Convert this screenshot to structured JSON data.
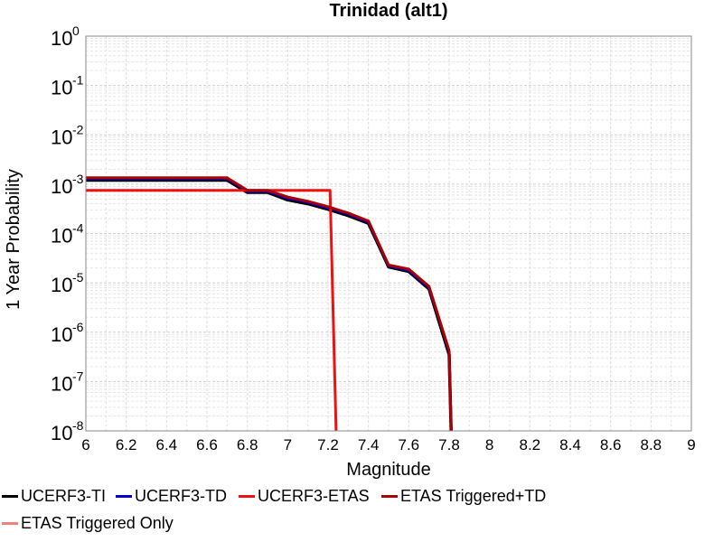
{
  "chart_data": {
    "type": "line",
    "title": "Trinidad (alt1)",
    "xlabel": "Magnitude",
    "ylabel": "1 Year Probability",
    "x_scale": "linear",
    "y_scale": "log",
    "xlim": [
      6,
      9
    ],
    "ylim": [
      1e-08,
      1
    ],
    "x_ticks": [
      "6",
      "6.2",
      "6.4",
      "6.6",
      "6.8",
      "7",
      "7.2",
      "7.4",
      "7.6",
      "7.8",
      "8",
      "8.2",
      "8.4",
      "8.6",
      "8.8",
      "9"
    ],
    "y_ticks": [
      {
        "value": 1,
        "base": "10",
        "exp": "0"
      },
      {
        "value": 0.1,
        "base": "10",
        "exp": "-1"
      },
      {
        "value": 0.01,
        "base": "10",
        "exp": "-2"
      },
      {
        "value": 0.001,
        "base": "10",
        "exp": "-3"
      },
      {
        "value": 0.0001,
        "base": "10",
        "exp": "-4"
      },
      {
        "value": 1e-05,
        "base": "10",
        "exp": "-5"
      },
      {
        "value": 1e-06,
        "base": "10",
        "exp": "-6"
      },
      {
        "value": 1e-07,
        "base": "10",
        "exp": "-7"
      },
      {
        "value": 1e-08,
        "base": "10",
        "exp": "-8"
      }
    ],
    "grid": true,
    "legend_position": "bottom",
    "series": [
      {
        "name": "UCERF3-TI",
        "color": "#000000",
        "x": [
          6.0,
          6.1,
          6.2,
          6.3,
          6.4,
          6.5,
          6.6,
          6.7,
          6.8,
          6.9,
          7.0,
          7.1,
          7.2,
          7.3,
          7.4,
          7.5,
          7.6,
          7.7,
          7.8,
          7.81
        ],
        "y": [
          0.0012,
          0.0012,
          0.0012,
          0.0012,
          0.0012,
          0.0012,
          0.0012,
          0.0012,
          0.00068,
          0.00068,
          0.00048,
          0.0004,
          0.00031,
          0.00023,
          0.00016,
          2.1e-05,
          1.7e-05,
          7.5e-06,
          3.5e-07,
          1e-08
        ]
      },
      {
        "name": "UCERF3-TD",
        "color": "#0000cc",
        "x": [
          6.0,
          6.1,
          6.2,
          6.3,
          6.4,
          6.5,
          6.6,
          6.7,
          6.8,
          6.9,
          7.0,
          7.1,
          7.2,
          7.3,
          7.4,
          7.5,
          7.6,
          7.7,
          7.8,
          7.81
        ],
        "y": [
          0.0013,
          0.0013,
          0.0013,
          0.0013,
          0.0013,
          0.0013,
          0.0013,
          0.0013,
          0.00072,
          0.00072,
          0.00052,
          0.00043,
          0.00033,
          0.00025,
          0.00017,
          2.2e-05,
          1.8e-05,
          8e-06,
          4e-07,
          1e-08
        ]
      },
      {
        "name": "UCERF3-ETAS",
        "color": "#ee1111",
        "x": [
          6.0,
          7.2,
          7.21,
          7.24
        ],
        "y": [
          0.00075,
          0.00075,
          0.00075,
          1e-08
        ]
      },
      {
        "name": "ETAS Triggered+TD",
        "color": "#aa0000",
        "x": [
          6.0,
          6.1,
          6.2,
          6.3,
          6.4,
          6.5,
          6.6,
          6.7,
          6.8,
          6.9,
          7.0,
          7.1,
          7.2,
          7.3,
          7.4,
          7.5,
          7.6,
          7.7,
          7.8,
          7.81
        ],
        "y": [
          0.00135,
          0.00135,
          0.00135,
          0.00135,
          0.00135,
          0.00135,
          0.00135,
          0.00135,
          0.00075,
          0.00075,
          0.00055,
          0.00045,
          0.00035,
          0.00026,
          0.00018,
          2.3e-05,
          1.9e-05,
          8.5e-06,
          4.2e-07,
          1e-08
        ]
      },
      {
        "name": "ETAS Triggered Only",
        "color": "#f08080",
        "x": [],
        "y": []
      }
    ]
  }
}
